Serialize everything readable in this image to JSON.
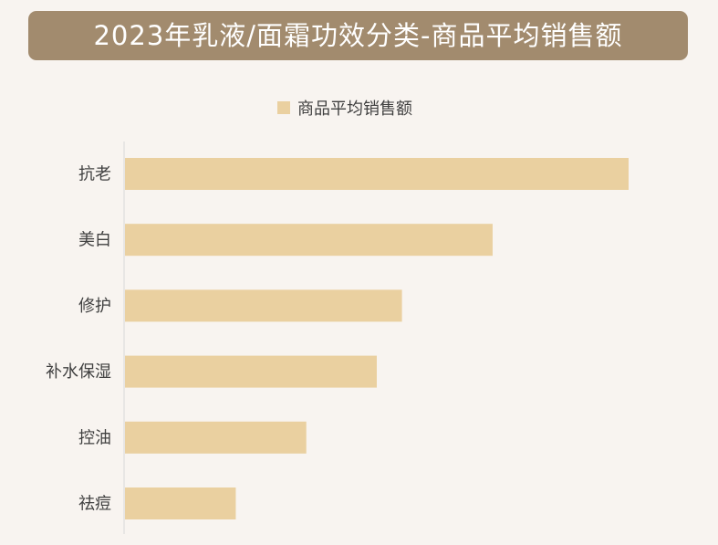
{
  "title": "2023年乳液/面霜功效分类-商品平均销售额",
  "colors": {
    "background": "#f8f4f0",
    "title_bar": "#a28b6e",
    "title_text": "#ffffff",
    "bar": "#ead0a0",
    "axis": "#d9d9d9",
    "label_text": "#404040"
  },
  "chart_data": {
    "type": "bar",
    "orientation": "horizontal",
    "title": "2023年乳液/面霜功效分类-商品平均销售额",
    "categories": [
      "抗老",
      "美白",
      "修护",
      "补水保湿",
      "控油",
      "祛痘"
    ],
    "series": [
      {
        "name": "商品平均销售额",
        "values": [
          100,
          73,
          55,
          50,
          36,
          22
        ]
      }
    ],
    "xlim": [
      0,
      100
    ],
    "legend_position": "top",
    "grid": false,
    "axis_values_shown": false
  }
}
